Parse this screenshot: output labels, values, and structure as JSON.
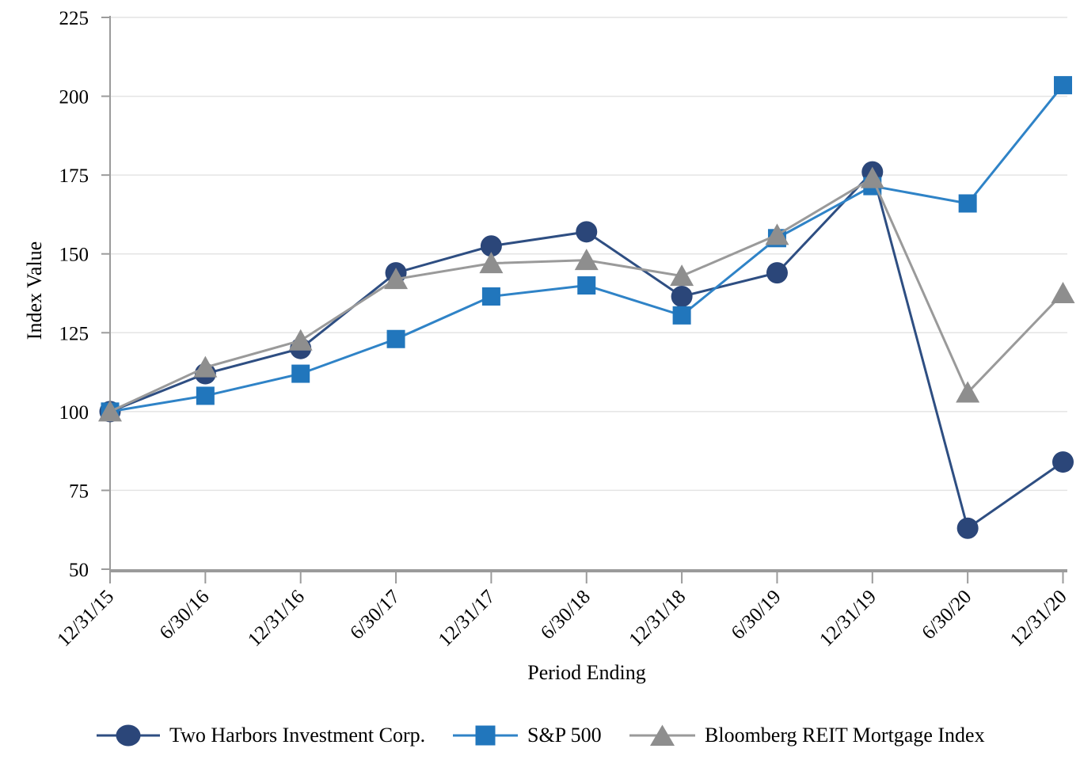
{
  "chart_data": {
    "type": "line",
    "title": "",
    "xlabel": "Period Ending",
    "ylabel": "Index Value",
    "ylim": [
      50,
      225
    ],
    "ytick_step": 25,
    "grid": true,
    "legend_position": "bottom",
    "categories": [
      "12/31/15",
      "6/30/16",
      "12/31/16",
      "6/30/17",
      "12/31/17",
      "6/30/18",
      "12/31/18",
      "6/30/19",
      "12/31/19",
      "6/30/20",
      "12/31/20"
    ],
    "series": [
      {
        "name": "Two Harbors Investment Corp.",
        "marker": "circle",
        "marker_color": "#2B4679",
        "line_color": "#2E4E82",
        "values": [
          100,
          112,
          120,
          144,
          152.5,
          157,
          136.5,
          144,
          176,
          63,
          84
        ]
      },
      {
        "name": "S&P 500",
        "marker": "square",
        "marker_color": "#2176BC",
        "line_color": "#2F83C7",
        "values": [
          100,
          105,
          112,
          123,
          136.5,
          140,
          130.5,
          155,
          171.5,
          166,
          203.5
        ]
      },
      {
        "name": "Bloomberg REIT Mortgage Index",
        "marker": "triangle",
        "marker_color": "#8E8E8E",
        "line_color": "#9A9A9A",
        "values": [
          100,
          114,
          122.5,
          142,
          147,
          148,
          143,
          156,
          174,
          106,
          137.5
        ]
      }
    ],
    "axis_color": "#9B9B9B",
    "gridline_color": "#E4E4E4",
    "text_color": "#000000"
  }
}
